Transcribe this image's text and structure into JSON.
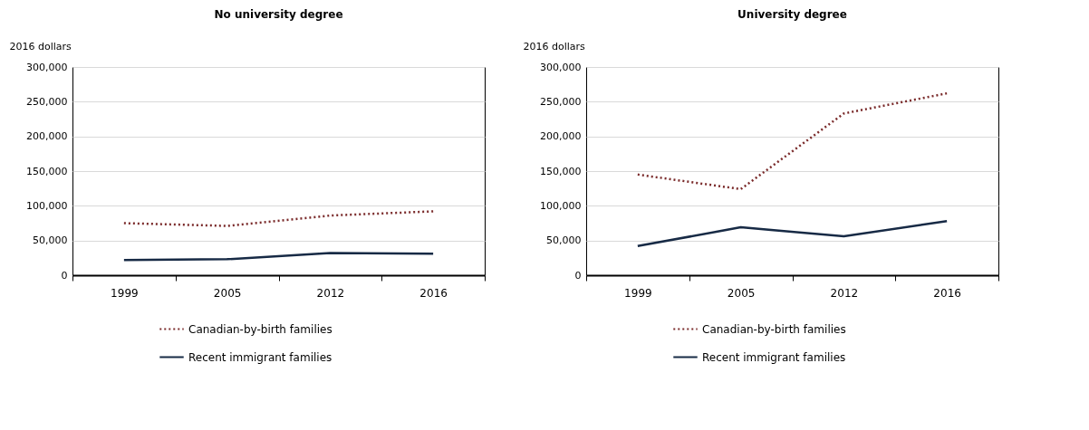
{
  "chart_data": [
    {
      "type": "line",
      "title": "No university degree",
      "ylabel": "2016 dollars",
      "categories": [
        "1999",
        "2005",
        "2012",
        "2016"
      ],
      "ylim": [
        0,
        300000
      ],
      "yticks": [
        {
          "value": 0,
          "label": "0"
        },
        {
          "value": 50000,
          "label": "50,000"
        },
        {
          "value": 100000,
          "label": "100,000"
        },
        {
          "value": 150000,
          "label": "150,000"
        },
        {
          "value": 200000,
          "label": "200,000"
        },
        {
          "value": 250000,
          "label": "250,000"
        },
        {
          "value": 300000,
          "label": "300,000"
        }
      ],
      "grid": "y",
      "legend": "bottom",
      "series": [
        {
          "name": "Canadian-by-birth families",
          "color": "#7a2a2a",
          "line_style": "dotted",
          "values": [
            75000,
            71000,
            86000,
            92000
          ]
        },
        {
          "name": "Recent immigrant families",
          "color": "#172a45",
          "line_style": "solid",
          "values": [
            22000,
            23000,
            32000,
            31000
          ]
        }
      ]
    },
    {
      "type": "line",
      "title": "University degree",
      "ylabel": "2016 dollars",
      "categories": [
        "1999",
        "2005",
        "2012",
        "2016"
      ],
      "ylim": [
        0,
        300000
      ],
      "yticks": [
        {
          "value": 0,
          "label": "0"
        },
        {
          "value": 50000,
          "label": "50,000"
        },
        {
          "value": 100000,
          "label": "100,000"
        },
        {
          "value": 150000,
          "label": "150,000"
        },
        {
          "value": 200000,
          "label": "200,000"
        },
        {
          "value": 250000,
          "label": "250,000"
        },
        {
          "value": 300000,
          "label": "300,000"
        }
      ],
      "grid": "y",
      "legend": "bottom",
      "series": [
        {
          "name": "Canadian-by-birth families",
          "color": "#7a2a2a",
          "line_style": "dotted",
          "values": [
            145000,
            124000,
            233000,
            262000
          ]
        },
        {
          "name": "Recent immigrant families",
          "color": "#172a45",
          "line_style": "solid",
          "values": [
            42000,
            69000,
            56000,
            78000
          ]
        }
      ]
    }
  ]
}
